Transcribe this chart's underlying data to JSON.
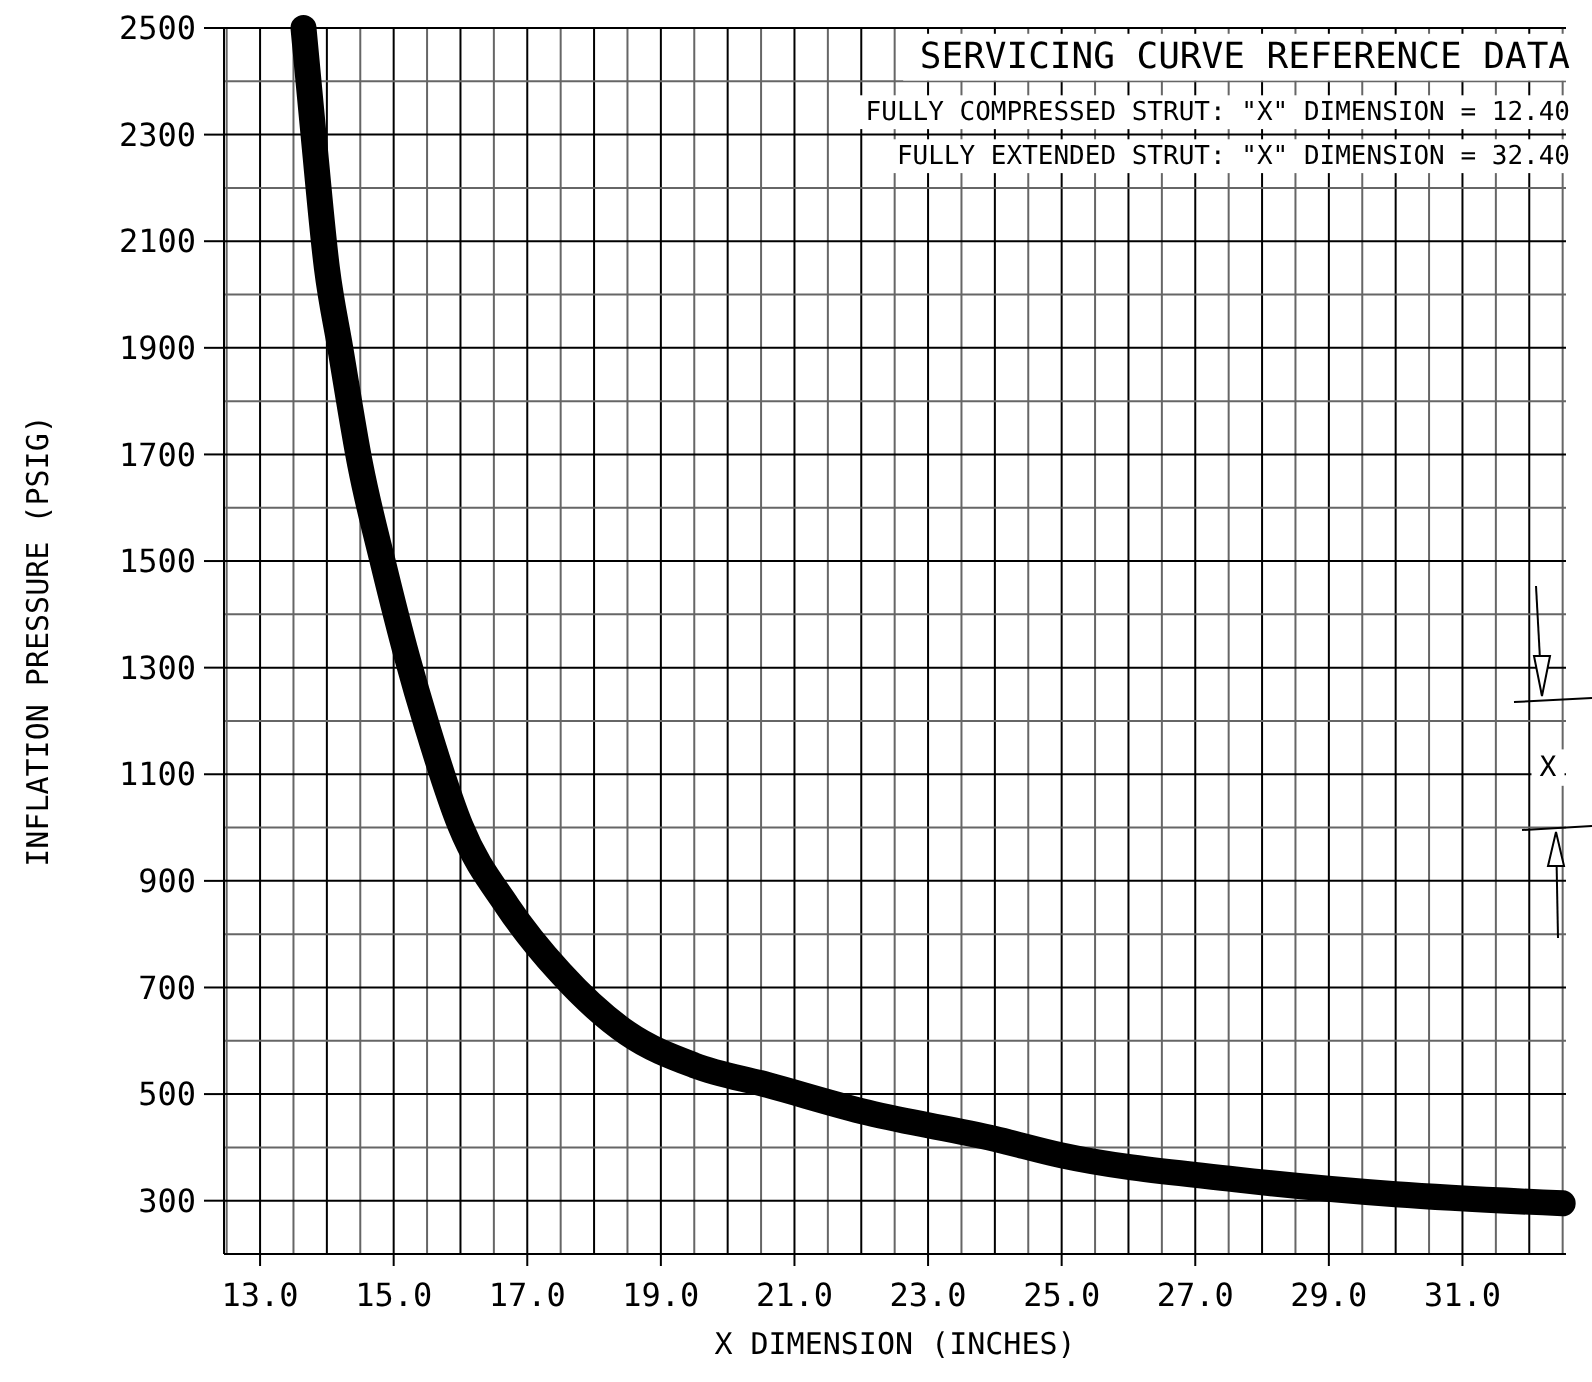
{
  "chart_data": {
    "type": "line",
    "title": "SERVICING CURVE REFERENCE DATA",
    "xlabel": "X DIMENSION (INCHES)",
    "ylabel": "INFLATION PRESSURE (PSIG)",
    "annotations": [
      "FULLY COMPRESSED STRUT:  \"X\" DIMENSION = 12.40",
      "FULLY EXTENDED STRUT:  \"X\" DIMENSION = 32.40",
      "X"
    ],
    "series": [
      {
        "color": "#000000",
        "x": [
          13.65,
          13.8,
          14.0,
          14.2,
          14.5,
          14.85,
          15.2,
          15.5,
          16.0,
          16.7,
          17.5,
          18.5,
          19.5,
          20.6,
          22.1,
          24.0,
          25.0,
          27.6,
          30.0,
          32.5
        ],
        "values": [
          2500,
          2300,
          2050,
          1900,
          1680,
          1492,
          1320,
          1190,
          1003,
          853,
          727,
          614,
          554,
          517,
          465,
          416,
          385,
          340,
          312,
          295
        ]
      }
    ],
    "xlim": [
      12.46,
      32.55
    ],
    "ylim": [
      200,
      2500
    ],
    "xticks": [
      {
        "value": 12.5,
        "label": null
      },
      {
        "value": 13,
        "label": "13.0"
      },
      {
        "value": 13.5,
        "label": null
      },
      {
        "value": 14,
        "label": null
      },
      {
        "value": 14.5,
        "label": null
      },
      {
        "value": 15,
        "label": "15.0"
      },
      {
        "value": 15.5,
        "label": null
      },
      {
        "value": 16,
        "label": null
      },
      {
        "value": 16.5,
        "label": null
      },
      {
        "value": 17,
        "label": "17.0"
      },
      {
        "value": 17.5,
        "label": null
      },
      {
        "value": 18,
        "label": null
      },
      {
        "value": 18.5,
        "label": null
      },
      {
        "value": 19,
        "label": "19.0"
      },
      {
        "value": 19.5,
        "label": null
      },
      {
        "value": 20,
        "label": null
      },
      {
        "value": 20.5,
        "label": null
      },
      {
        "value": 21,
        "label": "21.0"
      },
      {
        "value": 21.5,
        "label": null
      },
      {
        "value": 22,
        "label": null
      },
      {
        "value": 22.5,
        "label": null
      },
      {
        "value": 23,
        "label": "23.0"
      },
      {
        "value": 23.5,
        "label": null
      },
      {
        "value": 24,
        "label": null
      },
      {
        "value": 24.5,
        "label": null
      },
      {
        "value": 25,
        "label": "25.0"
      },
      {
        "value": 25.5,
        "label": null
      },
      {
        "value": 26,
        "label": null
      },
      {
        "value": 26.5,
        "label": null
      },
      {
        "value": 27,
        "label": "27.0"
      },
      {
        "value": 27.5,
        "label": null
      },
      {
        "value": 28,
        "label": null
      },
      {
        "value": 28.5,
        "label": null
      },
      {
        "value": 29,
        "label": "29.0"
      },
      {
        "value": 29.5,
        "label": null
      },
      {
        "value": 30,
        "label": null
      },
      {
        "value": 30.5,
        "label": null
      },
      {
        "value": 31,
        "label": "31.0"
      },
      {
        "value": 31.5,
        "label": null
      },
      {
        "value": 32,
        "label": null
      },
      {
        "value": 32.5,
        "label": null
      }
    ],
    "yticks": [
      {
        "value": 200,
        "label": null
      },
      300,
      {
        "value": 400,
        "label": null
      },
      500,
      {
        "value": 600,
        "label": null
      },
      700,
      {
        "value": 800,
        "label": null
      },
      900,
      {
        "value": 1000,
        "label": null
      },
      1100,
      {
        "value": 1200,
        "label": null
      },
      1300,
      {
        "value": 1400,
        "label": null
      },
      1500,
      {
        "value": 1600,
        "label": null
      },
      1700,
      {
        "value": 1800,
        "label": null
      },
      1900,
      {
        "value": 2000,
        "label": null
      },
      2100,
      {
        "value": 2200,
        "label": null
      },
      2300,
      {
        "value": 2400,
        "label": null
      },
      2500
    ],
    "grid": true,
    "line_style": "solid"
  }
}
